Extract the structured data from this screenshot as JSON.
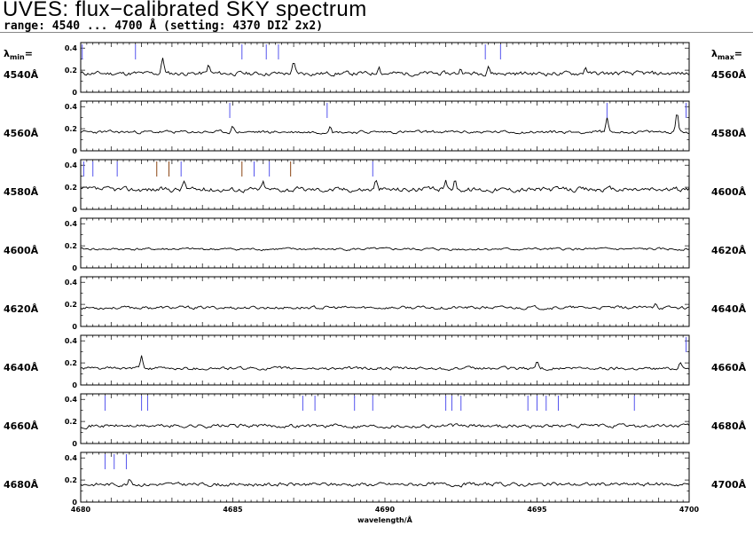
{
  "header": {
    "title": "UVES: flux−calibrated SKY spectrum",
    "subtitle": "range: 4540 ... 4700 Å (setting: 4370 DI2 2x2)",
    "lambda_min_label": "λmin=",
    "lambda_max_label": "λmax="
  },
  "colors": {
    "trace": "#000000",
    "marker": "#5555ee",
    "marker_alt": "#8b4513"
  },
  "chart_data": {
    "type": "line",
    "xlabel": "wavelength/Å",
    "bottom_xticks": [
      "4680",
      "4685",
      "4690",
      "4695",
      "4700"
    ],
    "y_ticks": [
      "0",
      "0.2",
      "0.4"
    ],
    "ylim": [
      0,
      0.45
    ],
    "panels": [
      {
        "lambda_min": "4540Å",
        "lambda_max": "4560Å",
        "wl_range": [
          4540,
          4560
        ],
        "level": 0.17,
        "noise": 0.035,
        "seed": 11,
        "peaks": [
          [
            4542.7,
            0.14
          ],
          [
            4544.2,
            0.07
          ],
          [
            4547.0,
            0.09
          ],
          [
            4549.8,
            0.07
          ],
          [
            4552.5,
            0.05
          ],
          [
            4553.4,
            0.08
          ],
          [
            4556.6,
            0.06
          ]
        ],
        "markers": [
          [
            4540.05,
            "blue"
          ],
          [
            4541.8,
            "blue"
          ],
          [
            4545.3,
            "blue"
          ],
          [
            4546.1,
            "blue"
          ],
          [
            4546.5,
            "blue"
          ],
          [
            4553.3,
            "blue"
          ],
          [
            4553.8,
            "blue"
          ]
        ]
      },
      {
        "lambda_min": "4560Å",
        "lambda_max": "4580Å",
        "wl_range": [
          4560,
          4580
        ],
        "level": 0.17,
        "noise": 0.025,
        "seed": 23,
        "peaks": [
          [
            4565.0,
            0.05
          ],
          [
            4568.2,
            0.07
          ],
          [
            4577.3,
            0.13
          ],
          [
            4579.6,
            0.18
          ]
        ],
        "markers": [
          [
            4564.9,
            "blue"
          ],
          [
            4568.1,
            "blue"
          ],
          [
            4577.3,
            "blue"
          ],
          [
            4579.9,
            "blue"
          ]
        ]
      },
      {
        "lambda_min": "4580Å",
        "lambda_max": "4600Å",
        "wl_range": [
          4580,
          4600
        ],
        "level": 0.18,
        "noise": 0.04,
        "seed": 37,
        "peaks": [
          [
            4583.4,
            0.08
          ],
          [
            4586.0,
            0.06
          ],
          [
            4589.7,
            0.08
          ],
          [
            4592.0,
            0.1
          ],
          [
            4592.3,
            0.08
          ]
        ],
        "markers": [
          [
            4580.1,
            "blue"
          ],
          [
            4580.4,
            "blue"
          ],
          [
            4581.2,
            "blue"
          ],
          [
            4582.5,
            "brown"
          ],
          [
            4582.9,
            "brown"
          ],
          [
            4583.3,
            "blue"
          ],
          [
            4585.3,
            "brown"
          ],
          [
            4585.7,
            "blue"
          ],
          [
            4586.2,
            "blue"
          ],
          [
            4586.9,
            "brown"
          ],
          [
            4589.6,
            "blue"
          ]
        ]
      },
      {
        "lambda_min": "4600Å",
        "lambda_max": "4620Å",
        "wl_range": [
          4600,
          4620
        ],
        "level": 0.17,
        "noise": 0.02,
        "seed": 41,
        "peaks": [],
        "markers": []
      },
      {
        "lambda_min": "4620Å",
        "lambda_max": "4640Å",
        "wl_range": [
          4620,
          4640
        ],
        "level": 0.17,
        "noise": 0.025,
        "seed": 53,
        "peaks": [
          [
            4638.9,
            0.05
          ]
        ],
        "markers": []
      },
      {
        "lambda_min": "4640Å",
        "lambda_max": "4660Å",
        "wl_range": [
          4640,
          4660
        ],
        "level": 0.15,
        "noise": 0.025,
        "seed": 61,
        "peaks": [
          [
            4642.0,
            0.11
          ],
          [
            4655.0,
            0.06
          ],
          [
            4659.7,
            0.07
          ]
        ],
        "markers": [
          [
            4659.9,
            "blue"
          ]
        ]
      },
      {
        "lambda_min": "4660Å",
        "lambda_max": "4680Å",
        "wl_range": [
          4660,
          4680
        ],
        "level": 0.16,
        "noise": 0.03,
        "seed": 71,
        "peaks": [],
        "markers": [
          [
            4660.8,
            "blue"
          ],
          [
            4662.0,
            "blue"
          ],
          [
            4662.2,
            "blue"
          ],
          [
            4667.3,
            "blue"
          ],
          [
            4667.7,
            "blue"
          ],
          [
            4669.0,
            "blue"
          ],
          [
            4669.6,
            "blue"
          ],
          [
            4672.0,
            "blue"
          ],
          [
            4672.2,
            "blue"
          ],
          [
            4672.5,
            "blue"
          ],
          [
            4674.7,
            "blue"
          ],
          [
            4675.0,
            "blue"
          ],
          [
            4675.3,
            "blue"
          ],
          [
            4675.7,
            "blue"
          ],
          [
            4678.2,
            "blue"
          ]
        ]
      },
      {
        "lambda_min": "4680Å",
        "lambda_max": "4700Å",
        "wl_range": [
          4680,
          4700
        ],
        "level": 0.16,
        "noise": 0.03,
        "seed": 83,
        "peaks": [
          [
            4681.6,
            0.06
          ]
        ],
        "markers": [
          [
            4680.8,
            "blue"
          ],
          [
            4681.1,
            "blue"
          ],
          [
            4681.5,
            "blue"
          ]
        ]
      }
    ]
  }
}
